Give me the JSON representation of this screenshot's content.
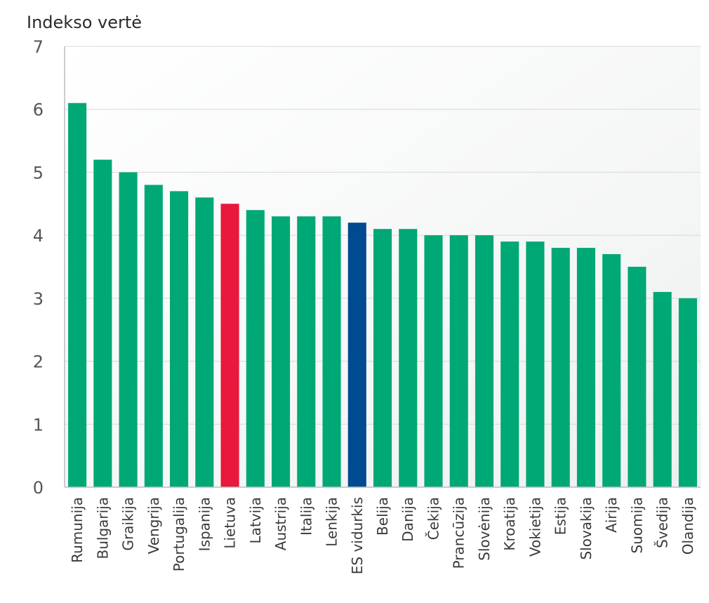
{
  "chart_data": {
    "type": "bar",
    "title": "",
    "ylabel": "Indekso vertė",
    "xlabel": "",
    "ylim": [
      0,
      7
    ],
    "yticks": [
      0,
      1,
      2,
      3,
      4,
      5,
      6,
      7
    ],
    "grid": true,
    "legend": "none",
    "categories": [
      "Rumunija",
      "Bulgarija",
      "Graikija",
      "Vengrija",
      "Portugalija",
      "Ispanija",
      "Lietuva",
      "Latvija",
      "Austrija",
      "Italija",
      "Lenkija",
      "ES vidurkis",
      "Belija",
      "Danija",
      "Čekija",
      "Prancūzija",
      "Slovėnija",
      "Kroatija",
      "Vokietija",
      "Estija",
      "Slovakija",
      "Airija",
      "Suomija",
      "Švedija",
      "Olandija"
    ],
    "values": [
      6.1,
      5.2,
      5.0,
      4.8,
      4.7,
      4.6,
      4.5,
      4.4,
      4.3,
      4.3,
      4.3,
      4.2,
      4.1,
      4.1,
      4.0,
      4.0,
      4.0,
      3.9,
      3.9,
      3.8,
      3.8,
      3.7,
      3.5,
      3.1,
      3.0
    ],
    "colors": {
      "default": "#00a875",
      "highlight": "#e8193c",
      "average": "#004a8f",
      "grid": "#d8d8d8",
      "axis": "#bbbbbb"
    },
    "highlight_category": "Lietuva",
    "average_category": "ES vidurkis"
  }
}
